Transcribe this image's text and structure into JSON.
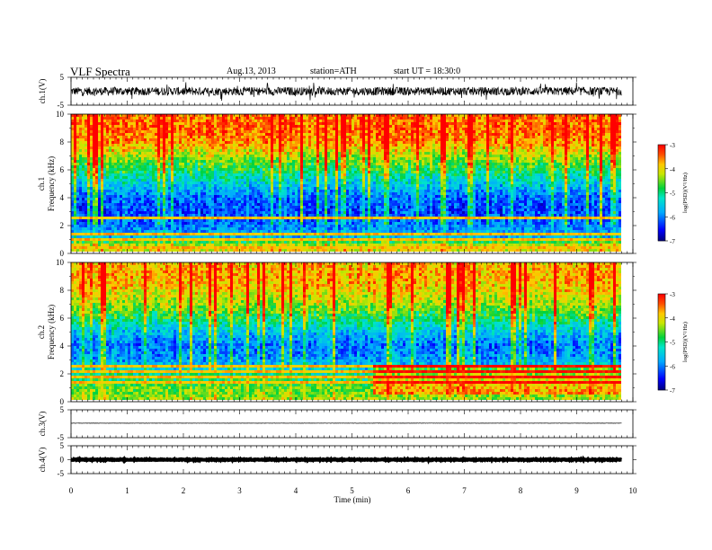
{
  "header": {
    "title": "VLF  Spectra",
    "date": "Aug.13, 2013",
    "station": "station=ATH",
    "start": "start  UT =  18:30:0"
  },
  "chart_data": [
    {
      "panel": "ch1-waveform",
      "type": "line",
      "ylabel": "ch.1(V)",
      "ylim": [
        -5,
        5
      ],
      "yticks": [
        "5",
        "-5"
      ],
      "x_range": [
        0,
        10
      ],
      "data_extent_min": 9.8,
      "series": [
        {
          "trace": "noisy waveform",
          "baseline": 0,
          "typical_amplitude": 1.5,
          "spike_amplitude": 3.5
        }
      ]
    },
    {
      "panel": "ch1-spectrogram",
      "type": "heatmap",
      "ylabel": "Frequency (kHz)",
      "ylabel2": "ch.1",
      "ylim": [
        0,
        10
      ],
      "yticks": [
        "0",
        "2",
        "4",
        "6",
        "8",
        "10"
      ],
      "x_range": [
        0,
        10
      ],
      "data_extent_min": 9.8,
      "colorbar": {
        "label": "log(PSD)(V²/Hz)",
        "range": [
          -7,
          -3
        ],
        "ticks": [
          "-3",
          "-4",
          "-5",
          "-6",
          "-7"
        ]
      },
      "profile_logpsd_by_khz": [
        [
          0,
          -4.0
        ],
        [
          0.5,
          -4.2
        ],
        [
          1,
          -5.6
        ],
        [
          2,
          -6.0
        ],
        [
          3,
          -6.2
        ],
        [
          4,
          -6.0
        ],
        [
          5,
          -5.4
        ],
        [
          6,
          -4.8
        ],
        [
          7,
          -4.2
        ],
        [
          8,
          -3.6
        ],
        [
          9,
          -3.4
        ],
        [
          10,
          -3.5
        ]
      ],
      "lines_khz": [
        0.3,
        0.6,
        0.9,
        1.3,
        2.4
      ]
    },
    {
      "panel": "ch2-spectrogram",
      "type": "heatmap",
      "ylabel": "Frequency (kHz)",
      "ylabel2": "ch.2",
      "ylim": [
        0,
        10
      ],
      "yticks": [
        "0",
        "2",
        "4",
        "6",
        "8",
        "10"
      ],
      "x_range": [
        0,
        10
      ],
      "data_extent_min": 9.8,
      "colorbar": {
        "label": "log(PSD)(V²/Hz)",
        "range": [
          -7,
          -3
        ],
        "ticks": [
          "-3",
          "-4",
          "-5",
          "-6",
          "-7"
        ]
      },
      "profile_logpsd_by_khz": [
        [
          0,
          -4.3
        ],
        [
          1,
          -4.6
        ],
        [
          2,
          -5.2
        ],
        [
          3,
          -5.8
        ],
        [
          4,
          -6.0
        ],
        [
          5,
          -5.5
        ],
        [
          6,
          -4.8
        ],
        [
          7,
          -4.3
        ],
        [
          8,
          -3.9
        ],
        [
          9,
          -3.7
        ],
        [
          10,
          -3.8
        ]
      ],
      "lines_khz": [
        0.4,
        0.8,
        1.2,
        1.6,
        2.0,
        2.5
      ]
    },
    {
      "panel": "ch3-waveform",
      "type": "line",
      "ylabel": "ch.3(V)",
      "ylim": [
        -5,
        5
      ],
      "yticks": [
        "5",
        "-5"
      ],
      "x_range": [
        0,
        10
      ],
      "data_extent_min": 9.8,
      "series": [
        {
          "trace": "flat waveform",
          "baseline": 0.2,
          "typical_amplitude": 0.05
        }
      ]
    },
    {
      "panel": "ch4-waveform",
      "type": "line",
      "ylabel": "ch.4(V)",
      "ylim": [
        -5,
        5
      ],
      "yticks": [
        "5",
        "0",
        "-5"
      ],
      "x_range": [
        0,
        10
      ],
      "data_extent_min": 9.8,
      "series": [
        {
          "trace": "thick flat waveform",
          "baseline": 0,
          "typical_amplitude": 0.15
        }
      ]
    }
  ],
  "x_axis": {
    "label": "Time  (min)",
    "range": [
      0,
      10
    ],
    "ticks": [
      "0",
      "1",
      "2",
      "3",
      "4",
      "5",
      "6",
      "7",
      "8",
      "9",
      "10"
    ]
  },
  "colors": {
    "low": "#000088",
    "high": "#ff0000",
    "axis": "#000000",
    "background": "#ffffff"
  }
}
